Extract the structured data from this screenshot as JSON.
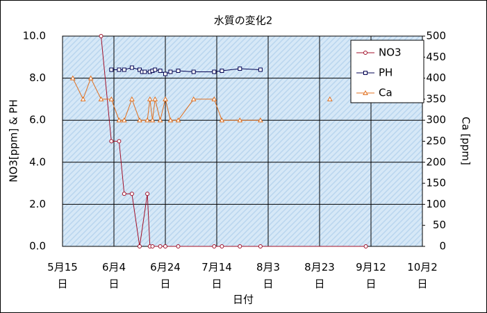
{
  "chart_data": {
    "type": "line",
    "title": "水質の変化2",
    "x_label": "日付",
    "y_label": "NO3[ppm] & PH",
    "y2_label": "Ca [ppm]",
    "xlim": [
      135,
      275
    ],
    "xticks": [
      {
        "value": 135,
        "label": "5月15日"
      },
      {
        "value": 155,
        "label": "6月4日"
      },
      {
        "value": 175,
        "label": "6月24日"
      },
      {
        "value": 195,
        "label": "7月14日"
      },
      {
        "value": 215,
        "label": "8月3日"
      },
      {
        "value": 235,
        "label": "8月23日"
      },
      {
        "value": 255,
        "label": "9月12日"
      },
      {
        "value": 275,
        "label": "10月2日"
      }
    ],
    "ylim": [
      0,
      10
    ],
    "yticks": [
      {
        "value": 0,
        "label": "0.0"
      },
      {
        "value": 2,
        "label": "2.0"
      },
      {
        "value": 4,
        "label": "4.0"
      },
      {
        "value": 6,
        "label": "6.0"
      },
      {
        "value": 8,
        "label": "8.0"
      },
      {
        "value": 10,
        "label": "10.0"
      }
    ],
    "y2lim": [
      0,
      500
    ],
    "y2ticks": [
      0,
      50,
      100,
      150,
      200,
      250,
      300,
      350,
      400,
      450,
      500
    ],
    "grid": true,
    "legend": "upper right",
    "series": [
      {
        "name": "NO3",
        "color": "#a0102a",
        "marker": "circle",
        "x": [
          150,
          154,
          157,
          159,
          162,
          165,
          168,
          169,
          170,
          173,
          175,
          180,
          194,
          197,
          204,
          212,
          253
        ],
        "values": [
          10,
          5,
          5,
          2.5,
          2.5,
          0,
          2.5,
          0,
          0,
          0,
          0,
          0,
          0,
          0,
          0,
          0,
          0
        ]
      },
      {
        "name": "PH",
        "color": "#000050",
        "marker": "square",
        "x": [
          154,
          157,
          159,
          162,
          165,
          166,
          167,
          169,
          170,
          171,
          173,
          175,
          177,
          180,
          186,
          194,
          197,
          204,
          212
        ],
        "values": [
          8.4,
          8.4,
          8.4,
          8.5,
          8.4,
          8.3,
          8.3,
          8.3,
          8.35,
          8.4,
          8.35,
          8.2,
          8.3,
          8.35,
          8.3,
          8.3,
          8.35,
          8.45,
          8.4
        ]
      },
      {
        "name": "Ca",
        "color": "#e07020",
        "marker": "triangle",
        "axis": "y2",
        "x": [
          139,
          143,
          146,
          150,
          154,
          157,
          159,
          162,
          165,
          168,
          169,
          170,
          171,
          173,
          175,
          177,
          180,
          186,
          194,
          197,
          204,
          212,
          null,
          239
        ],
        "values": [
          400,
          350,
          400,
          350,
          350,
          300,
          300,
          350,
          300,
          300,
          350,
          300,
          350,
          300,
          350,
          300,
          300,
          350,
          350,
          300,
          300,
          300,
          null,
          350
        ]
      }
    ]
  }
}
